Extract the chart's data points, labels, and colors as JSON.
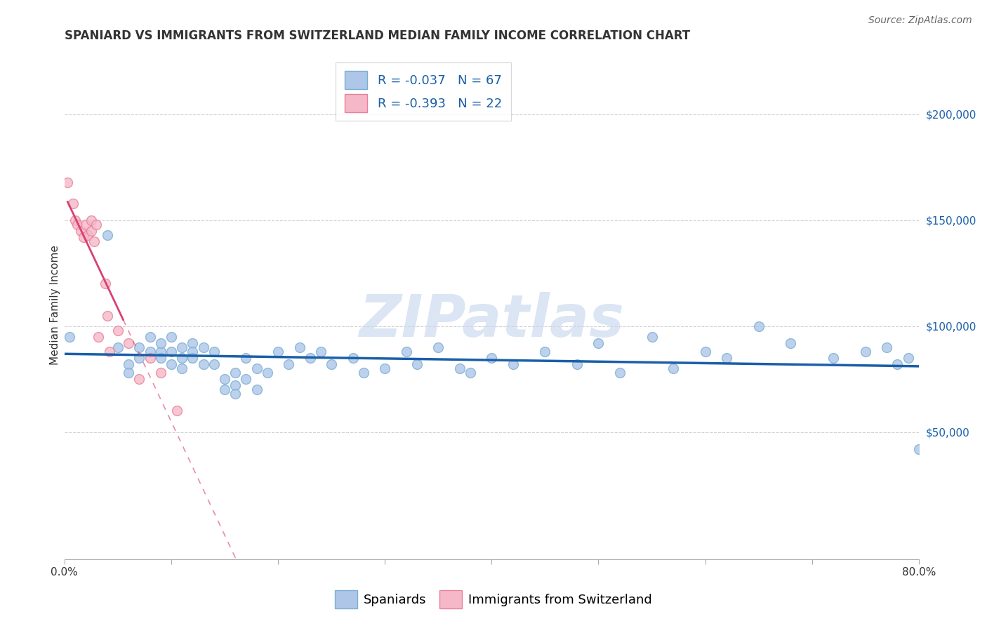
{
  "title": "SPANIARD VS IMMIGRANTS FROM SWITZERLAND MEDIAN FAMILY INCOME CORRELATION CHART",
  "source": "Source: ZipAtlas.com",
  "ylabel": "Median Family Income",
  "watermark": "ZIPatlas",
  "series1_label": "Spaniards",
  "series2_label": "Immigrants from Switzerland",
  "series1_color": "#aec6e8",
  "series2_color": "#f5b8c8",
  "series1_edge": "#7aafd4",
  "series2_edge": "#e8809a",
  "trendline1_color": "#1a5fa8",
  "trendline2_color": "#d94070",
  "ytick_labels": [
    "$50,000",
    "$100,000",
    "$150,000",
    "$200,000"
  ],
  "ytick_values": [
    50000,
    100000,
    150000,
    200000
  ],
  "ylim": [
    -10000,
    230000
  ],
  "xlim": [
    0.0,
    0.8
  ],
  "spaniards_x": [
    0.005,
    0.04,
    0.05,
    0.06,
    0.06,
    0.07,
    0.07,
    0.08,
    0.08,
    0.09,
    0.09,
    0.09,
    0.1,
    0.1,
    0.1,
    0.11,
    0.11,
    0.11,
    0.12,
    0.12,
    0.12,
    0.13,
    0.13,
    0.14,
    0.14,
    0.15,
    0.15,
    0.16,
    0.16,
    0.16,
    0.17,
    0.17,
    0.18,
    0.18,
    0.19,
    0.2,
    0.21,
    0.22,
    0.23,
    0.24,
    0.25,
    0.27,
    0.28,
    0.3,
    0.32,
    0.33,
    0.35,
    0.37,
    0.38,
    0.4,
    0.42,
    0.45,
    0.48,
    0.5,
    0.52,
    0.55,
    0.57,
    0.6,
    0.62,
    0.65,
    0.68,
    0.72,
    0.75,
    0.77,
    0.78,
    0.79,
    0.8
  ],
  "spaniards_y": [
    95000,
    143000,
    90000,
    82000,
    78000,
    90000,
    85000,
    88000,
    95000,
    88000,
    85000,
    92000,
    88000,
    82000,
    95000,
    90000,
    85000,
    80000,
    92000,
    88000,
    85000,
    82000,
    90000,
    88000,
    82000,
    75000,
    70000,
    72000,
    68000,
    78000,
    85000,
    75000,
    80000,
    70000,
    78000,
    88000,
    82000,
    90000,
    85000,
    88000,
    82000,
    85000,
    78000,
    80000,
    88000,
    82000,
    90000,
    80000,
    78000,
    85000,
    82000,
    88000,
    82000,
    92000,
    78000,
    95000,
    80000,
    88000,
    85000,
    100000,
    92000,
    85000,
    88000,
    90000,
    82000,
    85000,
    42000
  ],
  "switz_x": [
    0.003,
    0.008,
    0.01,
    0.012,
    0.015,
    0.018,
    0.02,
    0.022,
    0.025,
    0.025,
    0.028,
    0.03,
    0.032,
    0.038,
    0.04,
    0.042,
    0.05,
    0.06,
    0.07,
    0.08,
    0.09,
    0.105
  ],
  "switz_y": [
    168000,
    158000,
    150000,
    148000,
    145000,
    142000,
    148000,
    143000,
    150000,
    145000,
    140000,
    148000,
    95000,
    120000,
    105000,
    88000,
    98000,
    92000,
    75000,
    85000,
    78000,
    60000
  ],
  "title_fontsize": 12,
  "source_fontsize": 10,
  "axis_label_fontsize": 11,
  "tick_fontsize": 11,
  "legend_fontsize": 13,
  "watermark_fontsize": 60,
  "marker_size": 100,
  "background_color": "#ffffff",
  "grid_color": "#d0d0d0"
}
